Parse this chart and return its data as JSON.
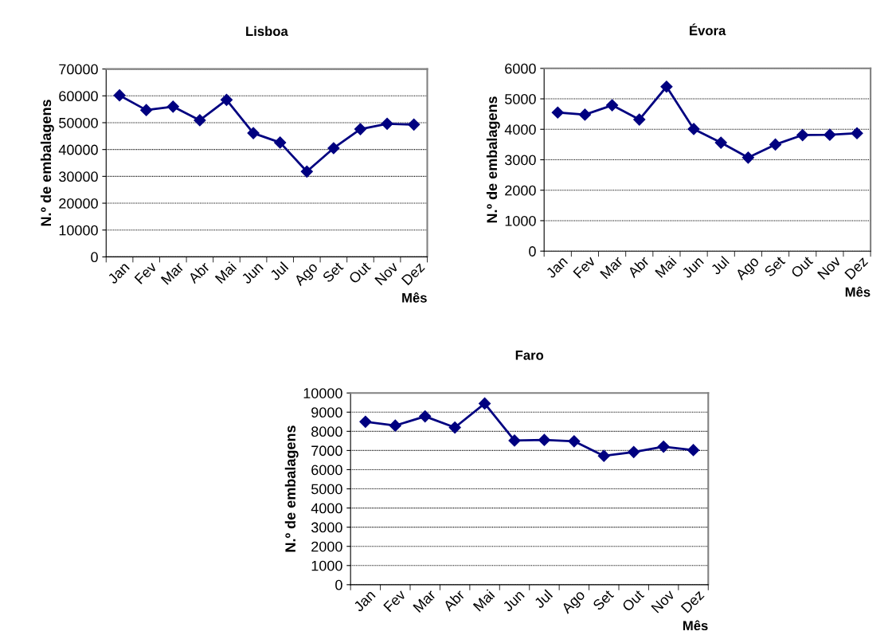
{
  "chart_data": [
    {
      "type": "line",
      "title": "Lisboa",
      "xlabel": "Mês",
      "ylabel": "N.º de embalagens",
      "categories": [
        "Jan",
        "Fev",
        "Mar",
        "Abr",
        "Mai",
        "Jun",
        "Jul",
        "Ago",
        "Set",
        "Out",
        "Nov",
        "Dez"
      ],
      "series": [
        {
          "color": "#000080",
          "values": [
            60200,
            54700,
            56000,
            50900,
            58500,
            46100,
            42600,
            31800,
            40500,
            47600,
            49600,
            49300
          ]
        }
      ],
      "ylim": [
        0,
        70000
      ],
      "yticks": [
        0,
        10000,
        20000,
        30000,
        40000,
        50000,
        60000,
        70000
      ],
      "grid": "y",
      "legend": false,
      "marker": "diamond",
      "line_style": "solid"
    },
    {
      "type": "line",
      "title": "Évora",
      "xlabel": "Mês",
      "ylabel": "N.º de embalagens",
      "categories": [
        "Jan",
        "Fev",
        "Mar",
        "Abr",
        "Mai",
        "Jun",
        "Jul",
        "Ago",
        "Set",
        "Out",
        "Nov",
        "Dez"
      ],
      "series": [
        {
          "color": "#000080",
          "values": [
            4550,
            4480,
            4790,
            4320,
            5400,
            4010,
            3560,
            3070,
            3500,
            3810,
            3820,
            3870
          ]
        }
      ],
      "ylim": [
        0,
        6000
      ],
      "yticks": [
        0,
        1000,
        2000,
        3000,
        4000,
        5000,
        6000
      ],
      "grid": "y",
      "legend": false,
      "marker": "diamond",
      "line_style": "solid"
    },
    {
      "type": "line",
      "title": "Faro",
      "xlabel": "Mês",
      "ylabel": "N.º de embalagens",
      "categories": [
        "Jan",
        "Fev",
        "Mar",
        "Abr",
        "Mai",
        "Jun",
        "Jul",
        "Ago",
        "Set",
        "Out",
        "Nov",
        "Dez"
      ],
      "series": [
        {
          "color": "#000080",
          "values": [
            8500,
            8300,
            8780,
            8200,
            9450,
            7520,
            7550,
            7480,
            6720,
            6920,
            7200,
            7020
          ]
        }
      ],
      "ylim": [
        0,
        10000
      ],
      "yticks": [
        0,
        1000,
        2000,
        3000,
        4000,
        5000,
        6000,
        7000,
        8000,
        9000,
        10000
      ],
      "grid": "y",
      "legend": false,
      "marker": "diamond",
      "line_style": "solid"
    }
  ]
}
